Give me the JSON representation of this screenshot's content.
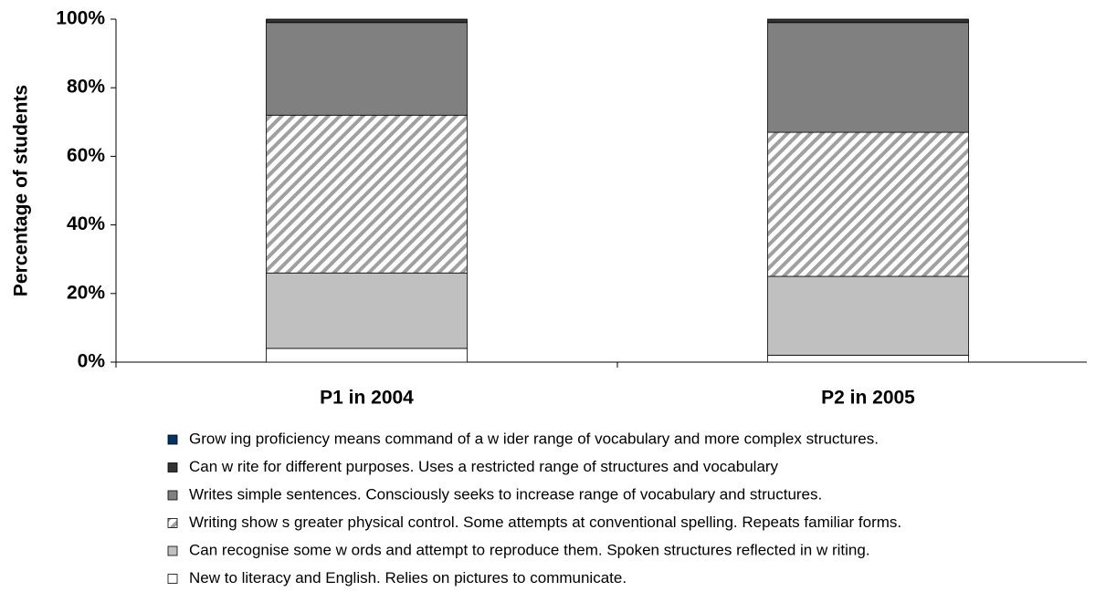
{
  "chart_data": {
    "type": "stacked_bar",
    "ylabel": "Percentage of students",
    "categories": [
      "P1 in 2004",
      "P2 in 2005"
    ],
    "series": [
      {
        "name": "New to literacy and English. Relies on pictures to communicate.",
        "color": "#ffffff",
        "values": [
          4,
          2
        ]
      },
      {
        "name": "Can recognise some w ords and attempt to reproduce them. Spoken structures reflected in w riting.",
        "color": "#c0c0c0",
        "values": [
          22,
          23
        ]
      },
      {
        "name": "Writing show s greater physical control. Some attempts at conventional spelling. Repeats familiar forms.",
        "color": "#a0a0a0",
        "pattern": "diagonal",
        "values": [
          46,
          42
        ]
      },
      {
        "name": "Writes simple sentences. Consciously seeks to increase range of vocabulary and structures.",
        "color": "#808080",
        "values": [
          27,
          32
        ]
      },
      {
        "name": "Can w rite for different purposes. Uses a restricted range of structures and vocabulary",
        "color": "#333333",
        "values": [
          1,
          1
        ]
      },
      {
        "name": "Grow ing proficiency means command of a w ider range of vocabulary and more complex structures.",
        "color": "#003366",
        "values": [
          0,
          0
        ]
      }
    ],
    "ylim": [
      0,
      100
    ],
    "yticks": [
      {
        "value": 0,
        "label": "0%"
      },
      {
        "value": 20,
        "label": "20%"
      },
      {
        "value": 40,
        "label": "40%"
      },
      {
        "value": 60,
        "label": "60%"
      },
      {
        "value": 80,
        "label": "80%"
      },
      {
        "value": 100,
        "label": "100%"
      }
    ],
    "legend": "bottom"
  }
}
